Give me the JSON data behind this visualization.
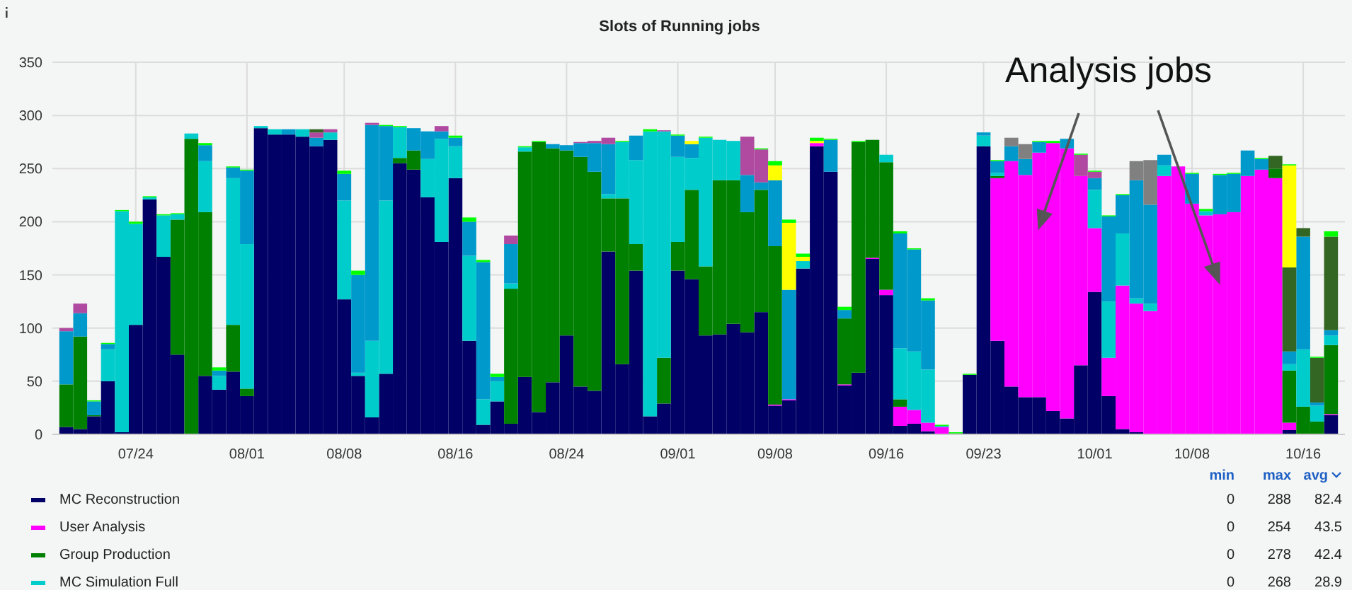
{
  "chart_data": {
    "type": "bar",
    "title": "Slots of Running jobs",
    "stacked": true,
    "grid": true,
    "legend": "bottom",
    "x": [
      "--07-19",
      "--07-20",
      "--07-21",
      "--07-22",
      "--07-23",
      "--07-24",
      "--07-25",
      "--07-26",
      "--07-27",
      "--07-28",
      "--07-29",
      "--07-30",
      "--07-31",
      "--08-01",
      "--08-02",
      "--08-03",
      "--08-04",
      "--08-05",
      "--08-06",
      "--08-07",
      "--08-08",
      "--08-09",
      "--08-10",
      "--08-11",
      "--08-12",
      "--08-13",
      "--08-14",
      "--08-15",
      "--08-16",
      "--08-17",
      "--08-18",
      "--08-19",
      "--08-20",
      "--08-21",
      "--08-22",
      "--08-23",
      "--08-24",
      "--08-25",
      "--08-26",
      "--08-27",
      "--08-28",
      "--08-29",
      "--08-30",
      "--08-31",
      "--09-01",
      "--09-02",
      "--09-03",
      "--09-04",
      "--09-05",
      "--09-06",
      "--09-07",
      "--09-08",
      "--09-09",
      "--09-10",
      "--09-11",
      "--09-12",
      "--09-13",
      "--09-14",
      "--09-15",
      "--09-16",
      "--09-17",
      "--09-18",
      "--09-19",
      "--09-20",
      "--09-21",
      "--09-22",
      "--09-23",
      "--09-24",
      "--09-25",
      "--09-26",
      "--09-27",
      "--09-28",
      "--09-29",
      "--09-30",
      "--10-01",
      "--10-02",
      "--10-03",
      "--10-04",
      "--10-05",
      "--10-06",
      "--10-07",
      "--10-08",
      "--10-09",
      "--10-10",
      "--10-11",
      "--10-12",
      "--10-13",
      "--10-14",
      "--10-15",
      "--10-16",
      "--10-17",
      "--10-18"
    ],
    "xlim": [
      "--07-18",
      "--10-19"
    ],
    "xticks": [
      {
        "value": "--07-24",
        "label": "07/24"
      },
      {
        "value": "--08-01",
        "label": "08/01"
      },
      {
        "value": "--08-08",
        "label": "08/08"
      },
      {
        "value": "--08-16",
        "label": "08/16"
      },
      {
        "value": "--08-24",
        "label": "08/24"
      },
      {
        "value": "--09-01",
        "label": "09/01"
      },
      {
        "value": "--09-08",
        "label": "09/08"
      },
      {
        "value": "--09-16",
        "label": "09/16"
      },
      {
        "value": "--09-23",
        "label": "09/23"
      },
      {
        "value": "--10-01",
        "label": "10/01"
      },
      {
        "value": "--10-08",
        "label": "10/08"
      },
      {
        "value": "--10-16",
        "label": "10/16"
      }
    ],
    "ylim": [
      0,
      350
    ],
    "yticks": [
      0,
      50,
      100,
      150,
      200,
      250,
      300,
      350
    ],
    "series": [
      {
        "name": "MC Reconstruction",
        "color": "#000066",
        "values": [
          7,
          5,
          17,
          50,
          2,
          103,
          221,
          167,
          75,
          0,
          55,
          42,
          59,
          36,
          288,
          282,
          282,
          280,
          271,
          277,
          127,
          55,
          16,
          57,
          255,
          249,
          223,
          181,
          241,
          88,
          9,
          31,
          10,
          54,
          21,
          49,
          93,
          45,
          41,
          172,
          66,
          154,
          17,
          29,
          154,
          146,
          93,
          94,
          104,
          96,
          115,
          27,
          32,
          156,
          271,
          247,
          46,
          58,
          165,
          131,
          8,
          10,
          3,
          0,
          0,
          56,
          271,
          88,
          45,
          35,
          35,
          22,
          15,
          65,
          134,
          36,
          5,
          2,
          0,
          0,
          0,
          0,
          0,
          0,
          0,
          0,
          0,
          0,
          4,
          0,
          0,
          18
        ]
      },
      {
        "name": "User Analysis",
        "color": "#ff00ff",
        "values": [
          0,
          0,
          0,
          0,
          0,
          0,
          0,
          0,
          0,
          0,
          0,
          0,
          0,
          0,
          0,
          0,
          0,
          0,
          0,
          0,
          0,
          0,
          0,
          0,
          0,
          0,
          0,
          0,
          0,
          0,
          0,
          0,
          0,
          0,
          0,
          0,
          0,
          0,
          0,
          0,
          0,
          0,
          0,
          0,
          0,
          0,
          0,
          0,
          0,
          0,
          0,
          1,
          1,
          0,
          3,
          0,
          1,
          0,
          1,
          5,
          18,
          13,
          8,
          7,
          0,
          0,
          0,
          153,
          212,
          209,
          230,
          252,
          254,
          178,
          60,
          36,
          135,
          121,
          116,
          243,
          252,
          217,
          206,
          207,
          209,
          243,
          249,
          241,
          7,
          0,
          0,
          1
        ]
      },
      {
        "name": "Group Production",
        "color": "#008000",
        "values": [
          40,
          87,
          1,
          0,
          0,
          0,
          0,
          0,
          127,
          278,
          154,
          0,
          44,
          7,
          0,
          0,
          0,
          0,
          0,
          0,
          0,
          0,
          0,
          0,
          5,
          18,
          0,
          0,
          0,
          0,
          0,
          0,
          127,
          212,
          254,
          220,
          174,
          216,
          206,
          50,
          156,
          25,
          0,
          43,
          27,
          84,
          65,
          145,
          135,
          113,
          115,
          149,
          0,
          0,
          0,
          0,
          62,
          217,
          111,
          120,
          7,
          0,
          0,
          0,
          1,
          0,
          0,
          2,
          0,
          0,
          0,
          0,
          0,
          0,
          0,
          0,
          0,
          0,
          0,
          0,
          0,
          0,
          0,
          0,
          0,
          0,
          0,
          9,
          49,
          26,
          12,
          65
        ]
      },
      {
        "name": "MC Simulation Full",
        "color": "#00cccc",
        "values": [
          0,
          0,
          0,
          30,
          208,
          95,
          2,
          39,
          5,
          5,
          48,
          13,
          138,
          136,
          2,
          5,
          0,
          7,
          0,
          7,
          93,
          3,
          72,
          163,
          29,
          0,
          36,
          97,
          30,
          80,
          24,
          19,
          5,
          4,
          0,
          0,
          0,
          0,
          0,
          4,
          53,
          79,
          268,
          213,
          80,
          30,
          121,
          38,
          37,
          0,
          0,
          0,
          0,
          7,
          0,
          0,
          0,
          0,
          0,
          7,
          48,
          55,
          50,
          1,
          0,
          0,
          10,
          3,
          0,
          0,
          0,
          0,
          0,
          0,
          36,
          53,
          49,
          5,
          7,
          10,
          0,
          0,
          4,
          0,
          0,
          0,
          0,
          0,
          6,
          54,
          15,
          9
        ]
      },
      {
        "color": "#0099cc",
        "values": [
          50,
          22,
          13,
          5,
          0,
          0,
          0,
          0,
          0,
          0,
          15,
          5,
          10,
          69,
          0,
          0,
          5,
          0,
          8,
          0,
          25,
          92,
          203,
          70,
          0,
          21,
          26,
          7,
          8,
          32,
          129,
          4,
          37,
          0,
          0,
          4,
          5,
          13,
          27,
          47,
          0,
          23,
          0,
          0,
          20,
          13,
          0,
          0,
          0,
          35,
          7,
          62,
          103,
          0,
          0,
          30,
          8,
          0,
          0,
          0,
          108,
          96,
          65,
          0,
          0,
          0,
          3,
          11,
          14,
          15,
          10,
          0,
          9,
          0,
          11,
          80,
          36,
          111,
          93,
          10,
          0,
          28,
          0,
          37,
          36,
          24,
          10,
          0,
          12,
          106,
          3,
          5
        ]
      },
      {
        "color": "#b04aa0",
        "values": [
          3,
          9,
          0,
          0,
          0,
          0,
          0,
          0,
          0,
          0,
          0,
          0,
          0,
          0,
          0,
          0,
          0,
          0,
          5,
          3,
          0,
          0,
          2,
          0,
          0,
          0,
          0,
          5,
          0,
          0,
          0,
          0,
          8,
          0,
          0,
          0,
          0,
          1,
          2,
          6,
          0,
          0,
          0,
          1,
          0,
          0,
          0,
          0,
          0,
          36,
          31,
          0,
          0,
          0,
          0,
          0,
          0,
          0,
          0,
          0,
          0,
          0,
          0,
          0,
          0,
          0,
          0,
          0,
          0,
          0,
          0,
          0,
          0,
          20,
          6,
          0,
          0,
          0,
          0,
          0,
          0,
          0,
          0,
          0,
          0,
          0,
          0,
          0,
          0,
          0,
          0,
          0
        ]
      },
      {
        "color": "#808080",
        "values": [
          0,
          0,
          0,
          0,
          0,
          0,
          0,
          0,
          0,
          0,
          0,
          0,
          0,
          0,
          0,
          0,
          0,
          0,
          0,
          0,
          0,
          0,
          0,
          0,
          0,
          0,
          0,
          0,
          0,
          0,
          0,
          0,
          0,
          0,
          0,
          0,
          0,
          0,
          0,
          0,
          0,
          0,
          0,
          0,
          0,
          0,
          0,
          0,
          0,
          0,
          0,
          0,
          0,
          0,
          0,
          0,
          0,
          0,
          0,
          0,
          0,
          0,
          0,
          0,
          0,
          0,
          0,
          0,
          8,
          14,
          0,
          0,
          0,
          0,
          0,
          0,
          0,
          18,
          42,
          0,
          0,
          0,
          0,
          0,
          0,
          0,
          0,
          0,
          0,
          0,
          0,
          0
        ]
      },
      {
        "color": "#336622",
        "values": [
          0,
          0,
          0,
          0,
          0,
          0,
          0,
          0,
          0,
          0,
          0,
          0,
          0,
          0,
          0,
          0,
          0,
          0,
          3,
          0,
          0,
          0,
          0,
          0,
          0,
          0,
          0,
          0,
          0,
          0,
          0,
          0,
          0,
          0,
          0,
          0,
          0,
          0,
          0,
          0,
          0,
          0,
          0,
          0,
          0,
          0,
          0,
          0,
          0,
          0,
          0,
          0,
          0,
          0,
          0,
          0,
          0,
          0,
          0,
          0,
          0,
          0,
          0,
          0,
          0,
          0,
          0,
          0,
          0,
          0,
          0,
          0,
          0,
          0,
          0,
          0,
          0,
          0,
          0,
          0,
          0,
          0,
          0,
          0,
          0,
          0,
          0,
          12,
          79,
          8,
          42,
          88
        ]
      },
      {
        "color": "#ffff00",
        "values": [
          0,
          0,
          0,
          0,
          0,
          0,
          0,
          0,
          0,
          0,
          0,
          0,
          0,
          0,
          0,
          0,
          0,
          0,
          0,
          0,
          0,
          0,
          0,
          0,
          0,
          0,
          0,
          0,
          0,
          0,
          0,
          0,
          0,
          0,
          0,
          0,
          0,
          0,
          0,
          0,
          0,
          0,
          0,
          0,
          0,
          3,
          0,
          0,
          0,
          0,
          0,
          14,
          63,
          4,
          2,
          0,
          0,
          0,
          0,
          0,
          0,
          0,
          0,
          0,
          0,
          0,
          0,
          0,
          0,
          0,
          0,
          0,
          0,
          0,
          0,
          0,
          0,
          0,
          0,
          0,
          0,
          0,
          0,
          0,
          0,
          0,
          0,
          0,
          96,
          0,
          0,
          0
        ]
      },
      {
        "color": "#00ff00",
        "values": [
          0,
          0,
          1,
          1,
          1,
          2,
          1,
          1,
          1,
          0,
          2,
          3,
          1,
          1,
          0,
          0,
          0,
          0,
          0,
          0,
          3,
          4,
          0,
          1,
          1,
          0,
          0,
          0,
          2,
          4,
          2,
          3,
          0,
          1,
          1,
          0,
          0,
          0,
          0,
          0,
          1,
          0,
          2,
          0,
          1,
          0,
          1,
          0,
          0,
          0,
          1,
          4,
          3,
          3,
          3,
          1,
          3,
          1,
          0,
          0,
          2,
          1,
          2,
          1,
          1,
          1,
          0,
          1,
          0,
          0,
          1,
          2,
          0,
          1,
          1,
          1,
          1,
          0,
          0,
          0,
          0,
          1,
          2,
          1,
          1,
          0,
          1,
          0,
          1,
          0,
          1,
          5
        ]
      }
    ],
    "annotations": [
      {
        "text": "Analysis jobs",
        "x": "--09-27",
        "y": 195
      },
      "min",
      "max",
      "avg",
      "0",
      "288",
      "82.4",
      "0",
      "254",
      "43.5",
      "0",
      "278",
      "42.4",
      "0",
      "268",
      "28.9"
    ]
  }
}
